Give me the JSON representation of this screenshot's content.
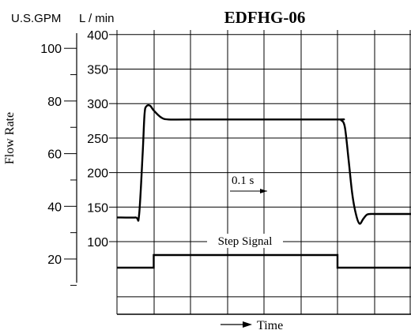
{
  "chart_data": {
    "type": "line",
    "title": "EDFHG-06",
    "xlabel": "Time",
    "ylabel": "Flow Rate",
    "unit_labels": {
      "left": "U.S.GPM",
      "right": "L / min"
    },
    "y_axis_lpm": {
      "ticks": [
        100,
        150,
        200,
        250,
        300,
        350,
        400
      ],
      "range": [
        20,
        400
      ]
    },
    "y_axis_gpm": {
      "ticks": [
        20,
        40,
        60,
        80,
        100
      ]
    },
    "x_range": [
      0,
      0.8
    ],
    "grid": true,
    "time_scale_annotation": "0.1 s",
    "series": [
      {
        "name": "",
        "x": [
          0,
          0.05,
          0.06,
          0.07,
          0.075,
          0.08,
          0.09,
          0.1,
          0.12,
          0.14,
          0.2,
          0.4,
          0.6,
          0.61,
          0.62,
          0.63,
          0.64,
          0.65,
          0.66,
          0.67,
          0.68,
          0.69,
          0.7,
          0.72,
          0.8
        ],
        "values": [
          135,
          135,
          138,
          230,
          285,
          296,
          297,
          290,
          280,
          277,
          277,
          277,
          277,
          276,
          266,
          220,
          170,
          140,
          126,
          133,
          139,
          140,
          140,
          140,
          140
        ]
      }
    ],
    "step_signal": {
      "name": "Step Signal",
      "x": [
        0,
        0.1,
        0.1,
        0.6,
        0.6,
        0.8
      ],
      "level": [
        0,
        0,
        1,
        1,
        0,
        0
      ]
    }
  }
}
